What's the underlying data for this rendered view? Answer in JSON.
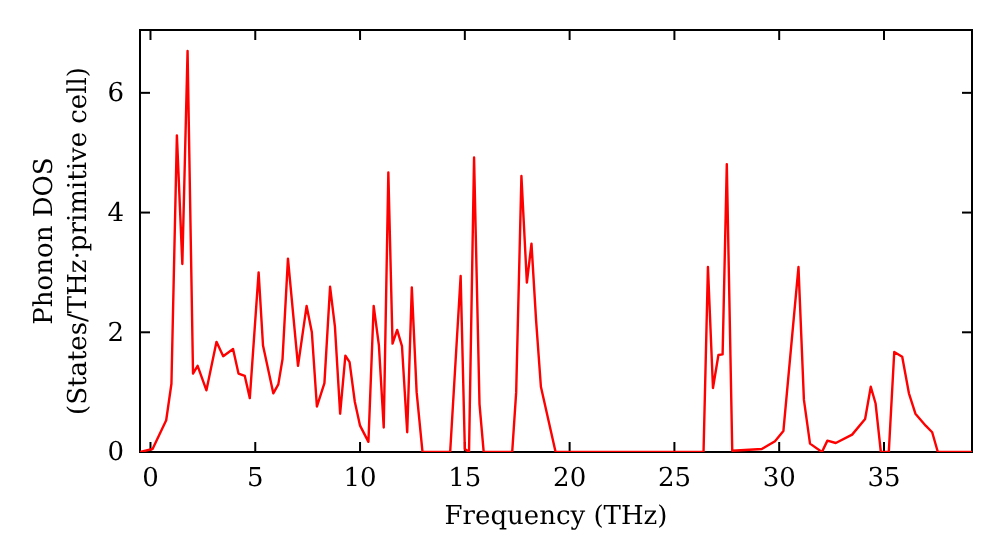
{
  "chart_data": {
    "type": "line",
    "xlabel": "Frequency (THz)",
    "ylabel": "Phonon DOS\n(States/THz·primitive cell)",
    "xlim": [
      -0.5,
      39.2
    ],
    "ylim": [
      0,
      7.05
    ],
    "xticks": [
      0,
      5,
      10,
      15,
      20,
      25,
      30,
      35
    ],
    "yticks": [
      0,
      2,
      4,
      6
    ],
    "grid": false,
    "x": [
      -0.5,
      0.1,
      0.75,
      1.0,
      1.26,
      1.52,
      1.77,
      2.03,
      2.25,
      2.67,
      3.15,
      3.47,
      3.94,
      4.2,
      4.5,
      4.74,
      5.16,
      5.37,
      5.86,
      6.1,
      6.3,
      6.56,
      7.04,
      7.45,
      7.7,
      7.94,
      8.3,
      8.57,
      8.8,
      9.05,
      9.3,
      9.5,
      9.75,
      10.0,
      10.4,
      10.65,
      10.9,
      11.13,
      11.35,
      11.55,
      11.77,
      12.0,
      12.25,
      12.47,
      12.7,
      12.98,
      14.3,
      14.8,
      15.0,
      15.2,
      15.44,
      15.7,
      15.9,
      17.26,
      17.45,
      17.7,
      17.96,
      18.18,
      18.4,
      18.63,
      19.33,
      26.39,
      26.6,
      26.84,
      27.1,
      27.3,
      27.5,
      27.76,
      29.17,
      29.8,
      30.2,
      30.92,
      31.18,
      31.47,
      32.04,
      32.3,
      32.7,
      33.48,
      34.1,
      34.37,
      34.6,
      34.85,
      35.23,
      35.49,
      35.87,
      36.19,
      36.5,
      36.99,
      37.3,
      37.57,
      39.2
    ],
    "series": [
      {
        "color": "#ff0000",
        "values": [
          0,
          0.05,
          0.53,
          1.14,
          5.29,
          3.14,
          6.7,
          1.31,
          1.44,
          1.03,
          1.84,
          1.6,
          1.72,
          1.31,
          1.27,
          0.9,
          3.0,
          1.78,
          0.98,
          1.13,
          1.55,
          3.23,
          1.44,
          2.44,
          2.0,
          0.76,
          1.15,
          2.76,
          2.1,
          0.64,
          1.61,
          1.5,
          0.84,
          0.44,
          0.17,
          2.44,
          1.78,
          0.41,
          4.67,
          1.81,
          2.04,
          1.77,
          0.33,
          2.75,
          1.0,
          0,
          0,
          2.94,
          0.05,
          0,
          4.92,
          0.8,
          0,
          0,
          1.0,
          4.61,
          2.83,
          3.48,
          2.2,
          1.09,
          0,
          0,
          3.09,
          1.07,
          1.62,
          1.63,
          4.81,
          0.02,
          0.05,
          0.18,
          0.35,
          3.09,
          0.87,
          0.14,
          0,
          0.19,
          0.15,
          0.29,
          0.55,
          1.09,
          0.81,
          0,
          0,
          1.67,
          1.59,
          0.98,
          0.64,
          0.44,
          0.33,
          0,
          0
        ]
      }
    ]
  }
}
